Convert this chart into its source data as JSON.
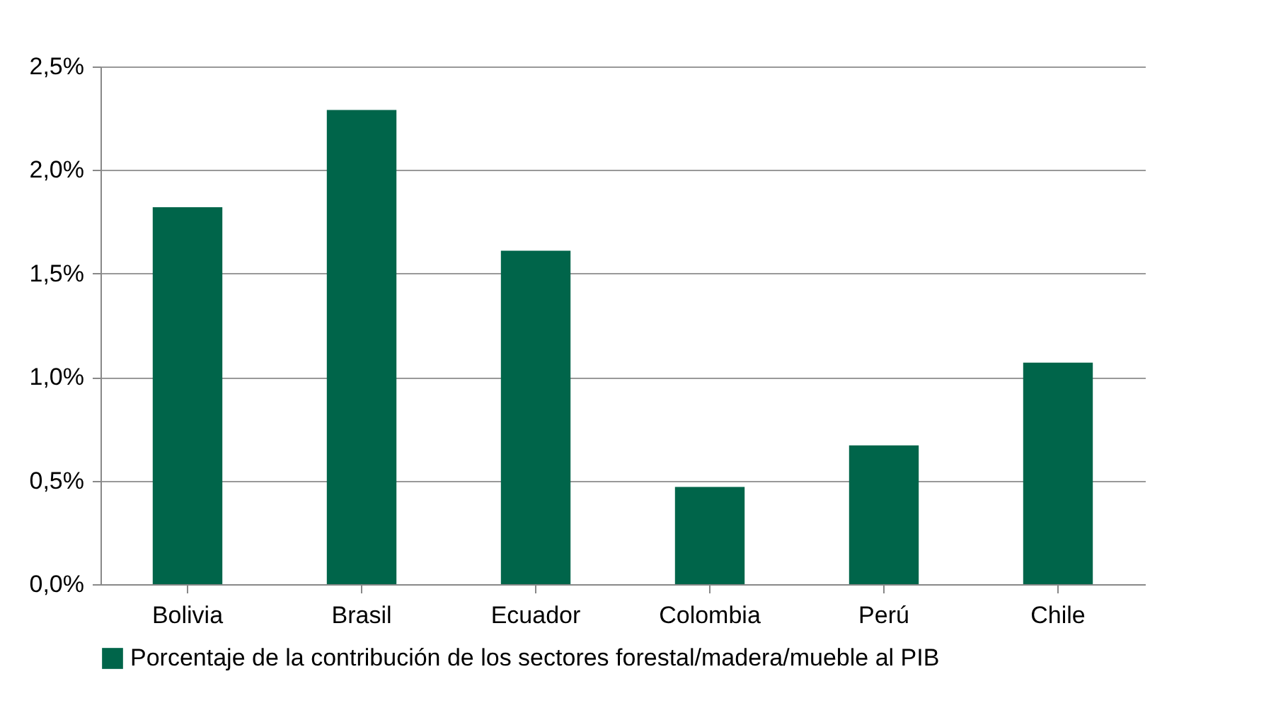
{
  "chart_data": {
    "type": "bar",
    "categories": [
      "Bolivia",
      "Brasil",
      "Ecuador",
      "Colombia",
      "Perú",
      "Chile"
    ],
    "series": [
      {
        "name": "Porcentaje de la contribución de los sectores forestal/madera/mueble al PIB",
        "color": "#00654a",
        "values": [
          1.82,
          2.29,
          1.61,
          0.47,
          0.67,
          1.07
        ]
      }
    ],
    "ylim": [
      0,
      2.5
    ],
    "yticks": [
      {
        "value": 0,
        "label": "0,0%"
      },
      {
        "value": 0.5,
        "label": "0,5%"
      },
      {
        "value": 1,
        "label": "1,0%"
      },
      {
        "value": 1.5,
        "label": "1,5%"
      },
      {
        "value": 2,
        "label": "2,0%"
      },
      {
        "value": 2.5,
        "label": "2,5%"
      }
    ],
    "grid": "y",
    "legend": "bottom left"
  }
}
